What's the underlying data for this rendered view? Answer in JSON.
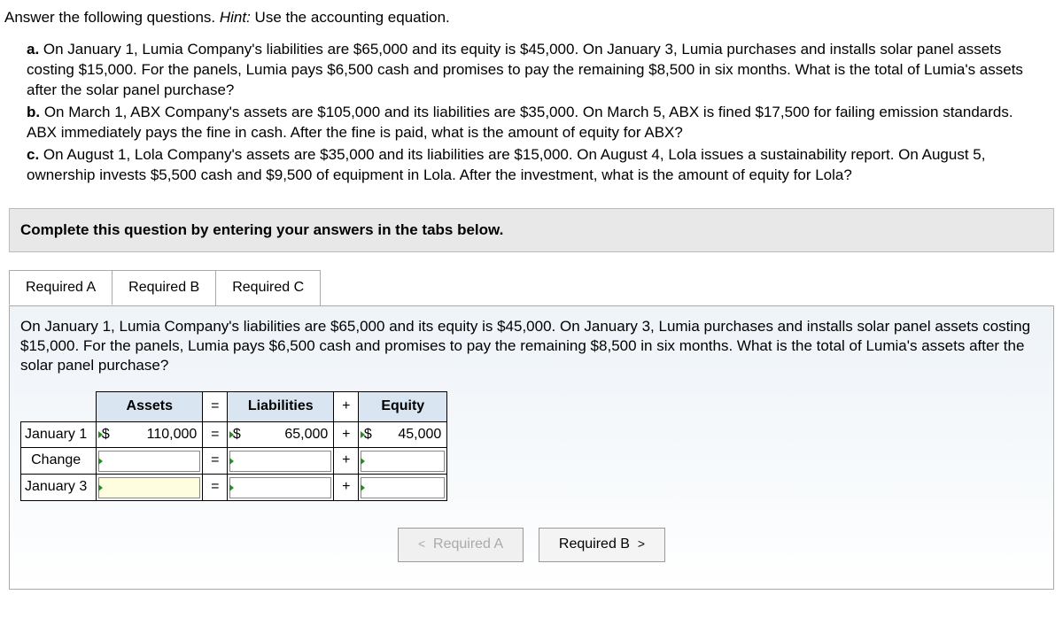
{
  "intro": {
    "lead": "Answer the following questions. ",
    "hint_label": "Hint:",
    "hint_text": " Use the accounting equation."
  },
  "questions": {
    "a_label": "a.",
    "a_text": " On January 1, Lumia Company's liabilities are $65,000 and its equity is $45,000. On January 3, Lumia purchases and installs solar panel assets costing $15,000. For the panels, Lumia pays $6,500 cash and promises to pay the remaining $8,500 in six months. What is the total of Lumia's assets after the solar panel purchase?",
    "b_label": "b.",
    "b_text": " On March 1, ABX Company's assets are $105,000 and its liabilities are $35,000. On March 5, ABX is fined $17,500 for failing emission standards. ABX immediately pays the fine in cash. After the fine is paid, what is the amount of equity for ABX?",
    "c_label": "c.",
    "c_text": " On August 1, Lola Company's assets are $35,000 and its liabilities are $15,000. On August 4, Lola issues a sustainability report. On August 5, ownership invests $5,500 cash and $9,500 of equipment in Lola. After the investment, what is the amount of equity for Lola?"
  },
  "instruction": "Complete this question by entering your answers in the tabs below.",
  "tabs": {
    "a": "Required A",
    "b": "Required B",
    "c": "Required C"
  },
  "tab_a_prompt": "On January 1, Lumia Company's liabilities are $65,000 and its equity is $45,000. On January 3, Lumia purchases and installs solar panel assets costing $15,000. For the panels, Lumia pays $6,500 cash and promises to pay the remaining $8,500 in six months. What is the total of Lumia's assets after the solar panel purchase?",
  "table": {
    "header_assets": "Assets",
    "header_liab": "Liabilities",
    "header_eq": "Equity",
    "op_eq": "=",
    "op_plus": "+",
    "row1": "January 1",
    "row2": "Change",
    "row3": "January 3",
    "sym": "$",
    "r1_assets": "110,000",
    "r1_liab": "65,000",
    "r1_eq": "45,000"
  },
  "nav": {
    "prev_sym": "<",
    "prev": "Required A",
    "next": "Required B",
    "next_sym": ">"
  }
}
